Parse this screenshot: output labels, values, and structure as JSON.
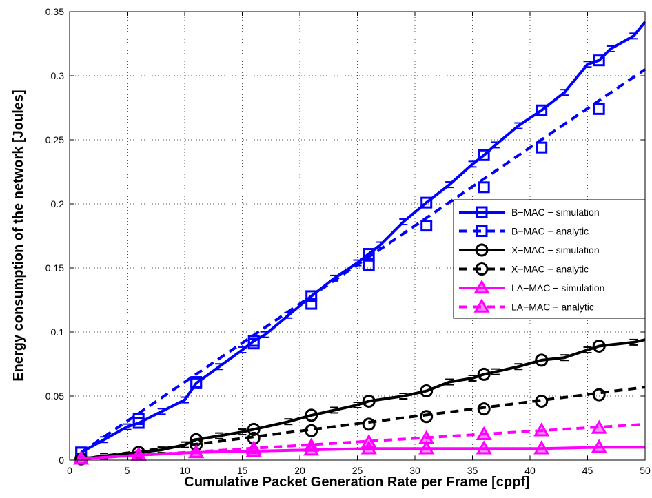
{
  "chart_data": {
    "type": "line",
    "title": "",
    "xlabel": "Cumulative Packet Generation Rate per Frame [cppf]",
    "ylabel": "Energy consumption of the network [Joules]",
    "xlim": [
      0,
      50
    ],
    "ylim": [
      0,
      0.35
    ],
    "xticks": [
      "0",
      "5",
      "10",
      "15",
      "20",
      "25",
      "30",
      "35",
      "40",
      "45",
      "50"
    ],
    "yticks": [
      "0",
      "0.05",
      "0.1",
      "0.15",
      "0.2",
      "0.25",
      "0.3",
      "0.35"
    ],
    "grid": true,
    "legend_position": "right-middle",
    "series": [
      {
        "name": "B−MAC − simulation",
        "color": "#0000ff",
        "dash": "solid",
        "marker": "square",
        "x": [
          1,
          3,
          5,
          6,
          8,
          10,
          11,
          13,
          15,
          16,
          17,
          19,
          21,
          23,
          25,
          26,
          27,
          29,
          31,
          33,
          35,
          36,
          37,
          39,
          41,
          43,
          45,
          46,
          47,
          49,
          50
        ],
        "y": [
          0.006,
          0.016,
          0.026,
          0.029,
          0.038,
          0.047,
          0.06,
          0.073,
          0.086,
          0.093,
          0.098,
          0.113,
          0.128,
          0.142,
          0.154,
          0.161,
          0.168,
          0.186,
          0.201,
          0.215,
          0.231,
          0.238,
          0.246,
          0.261,
          0.273,
          0.287,
          0.309,
          0.312,
          0.321,
          0.331,
          0.342
        ],
        "markers_x": [
          1,
          6,
          11,
          16,
          21,
          26,
          31,
          36,
          41,
          46
        ],
        "markers_y": [
          0.006,
          0.029,
          0.06,
          0.093,
          0.128,
          0.161,
          0.201,
          0.238,
          0.273,
          0.312
        ]
      },
      {
        "name": "B−MAC − analytic",
        "color": "#0000ff",
        "dash": "dashed",
        "marker": "square",
        "x": [
          1,
          50
        ],
        "y": [
          0.006,
          0.305
        ],
        "markers_x": [
          1,
          6,
          11,
          16,
          21,
          26,
          31,
          36,
          41,
          46
        ],
        "markers_y": [
          0.006,
          0.032,
          0.061,
          0.091,
          0.122,
          0.152,
          0.183,
          0.213,
          0.244,
          0.274
        ]
      },
      {
        "name": "X−MAC − simulation",
        "color": "#000000",
        "dash": "solid",
        "marker": "circle",
        "x": [
          1,
          3,
          6,
          8,
          10,
          11,
          13,
          15,
          16,
          19,
          21,
          23,
          25,
          26,
          29,
          31,
          33,
          35,
          36,
          37,
          39,
          41,
          43,
          45,
          46,
          49,
          50
        ],
        "y": [
          0.001,
          0.003,
          0.006,
          0.008,
          0.012,
          0.016,
          0.019,
          0.022,
          0.024,
          0.03,
          0.035,
          0.039,
          0.043,
          0.046,
          0.05,
          0.054,
          0.061,
          0.064,
          0.067,
          0.069,
          0.073,
          0.078,
          0.08,
          0.086,
          0.089,
          0.092,
          0.094
        ],
        "markers_x": [
          1,
          6,
          11,
          16,
          21,
          26,
          31,
          36,
          41,
          46
        ],
        "markers_y": [
          0.001,
          0.006,
          0.016,
          0.024,
          0.035,
          0.046,
          0.054,
          0.067,
          0.078,
          0.089
        ]
      },
      {
        "name": "X−MAC − analytic",
        "color": "#000000",
        "dash": "dashed",
        "marker": "circle",
        "x": [
          1,
          50
        ],
        "y": [
          0.001,
          0.057
        ],
        "markers_x": [
          1,
          6,
          11,
          16,
          21,
          26,
          31,
          36,
          41,
          46
        ],
        "markers_y": [
          0.001,
          0.006,
          0.012,
          0.017,
          0.023,
          0.028,
          0.034,
          0.04,
          0.046,
          0.051
        ]
      },
      {
        "name": "LA−MAC − simulation",
        "color": "#ff00ff",
        "dash": "solid",
        "marker": "triangle",
        "x": [
          1,
          6,
          11,
          16,
          21,
          26,
          31,
          36,
          41,
          46,
          50
        ],
        "y": [
          0.001,
          0.004,
          0.006,
          0.007,
          0.008,
          0.009,
          0.009,
          0.009,
          0.009,
          0.01,
          0.01
        ],
        "markers_x": [
          1,
          6,
          11,
          16,
          21,
          26,
          31,
          36,
          41,
          46
        ],
        "markers_y": [
          0.001,
          0.004,
          0.006,
          0.007,
          0.008,
          0.009,
          0.009,
          0.009,
          0.009,
          0.01
        ]
      },
      {
        "name": "LA−MAC − analytic",
        "color": "#ff00ff",
        "dash": "dashed",
        "marker": "triangle",
        "x": [
          1,
          50
        ],
        "y": [
          0.001,
          0.028
        ],
        "markers_x": [
          1,
          6,
          11,
          16,
          21,
          26,
          31,
          36,
          41,
          46
        ],
        "markers_y": [
          0.001,
          0.004,
          0.006,
          0.009,
          0.011,
          0.014,
          0.017,
          0.02,
          0.023,
          0.025
        ]
      }
    ]
  }
}
